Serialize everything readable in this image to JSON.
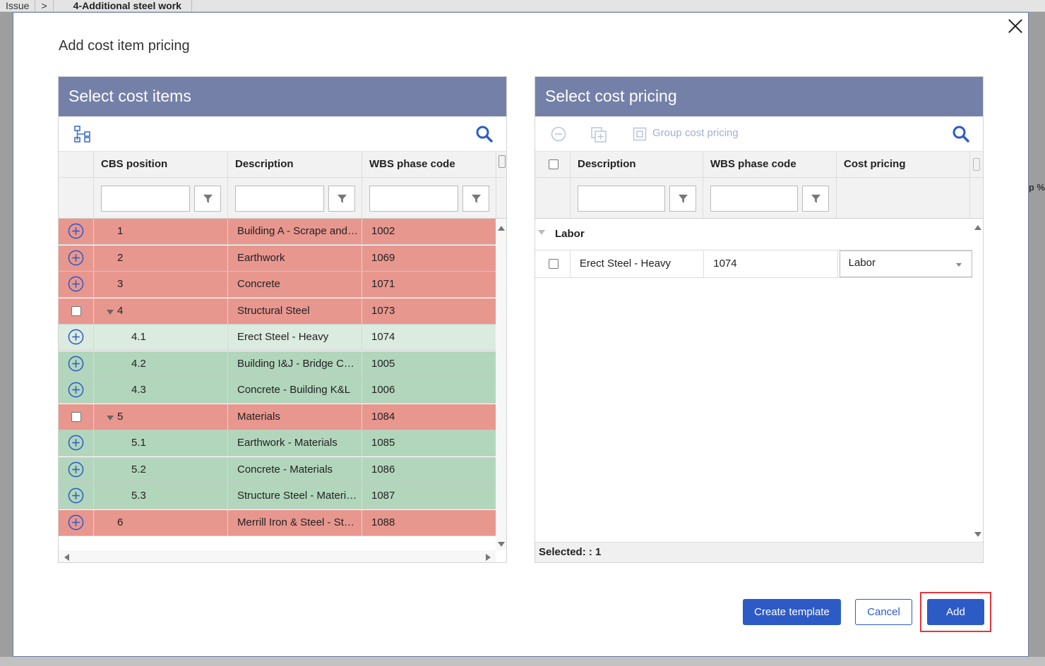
{
  "background": {
    "breadcrumb_root": "Issue",
    "breadcrumb_sep": ">",
    "breadcrumb_current": "4-Additional steel work",
    "right_fragment": "p %"
  },
  "modal": {
    "title": "Add cost item pricing"
  },
  "left_panel": {
    "title": "Select cost items",
    "columns": [
      "CBS position",
      "Description",
      "WBS phase code"
    ],
    "rows": [
      {
        "control": "plus",
        "cbs": "1",
        "description": "Building A - Scrape and…",
        "wbs": "1002",
        "color": "red"
      },
      {
        "control": "plus",
        "cbs": "2",
        "description": "Earthwork",
        "wbs": "1069",
        "color": "red"
      },
      {
        "control": "plus",
        "cbs": "3",
        "description": "Concrete",
        "wbs": "1071",
        "color": "red"
      },
      {
        "control": "checkbox",
        "cbs": "4",
        "description": "Structural Steel",
        "wbs": "1073",
        "color": "red",
        "expanded": true
      },
      {
        "control": "plus",
        "cbs": "4.1",
        "description": "Erect Steel - Heavy",
        "wbs": "1074",
        "color": "light"
      },
      {
        "control": "plus",
        "cbs": "4.2",
        "description": "Building I&J - Bridge C…",
        "wbs": "1005",
        "color": "green"
      },
      {
        "control": "plus",
        "cbs": "4.3",
        "description": "Concrete - Building K&L",
        "wbs": "1006",
        "color": "green"
      },
      {
        "control": "checkbox",
        "cbs": "5",
        "description": "Materials",
        "wbs": "1084",
        "color": "red",
        "expanded": true
      },
      {
        "control": "plus",
        "cbs": "5.1",
        "description": "Earthwork - Materials",
        "wbs": "1085",
        "color": "green"
      },
      {
        "control": "plus",
        "cbs": "5.2",
        "description": "Concrete - Materials",
        "wbs": "1086",
        "color": "green"
      },
      {
        "control": "plus",
        "cbs": "5.3",
        "description": "Structure Steel - Materi…",
        "wbs": "1087",
        "color": "green"
      },
      {
        "control": "plus",
        "cbs": "6",
        "description": "Merrill Iron & Steel - St…",
        "wbs": "1088",
        "color": "red"
      }
    ]
  },
  "right_panel": {
    "title": "Select cost pricing",
    "group_button": "Group cost pricing",
    "columns": [
      "Description",
      "WBS phase code",
      "Cost pricing"
    ],
    "group_name": "Labor",
    "row": {
      "description": "Erect Steel - Heavy",
      "wbs": "1074",
      "cost_pricing": "Labor"
    },
    "footer": "Selected: : 1"
  },
  "buttons": {
    "create_template": "Create template",
    "cancel": "Cancel",
    "add": "Add"
  },
  "colors": {
    "header": "#7480a8",
    "row_red": "#e8978f",
    "row_green": "#b2d6bc",
    "row_light": "#dcebdf",
    "primary": "#2d5bc6",
    "highlight": "#e2373c"
  }
}
